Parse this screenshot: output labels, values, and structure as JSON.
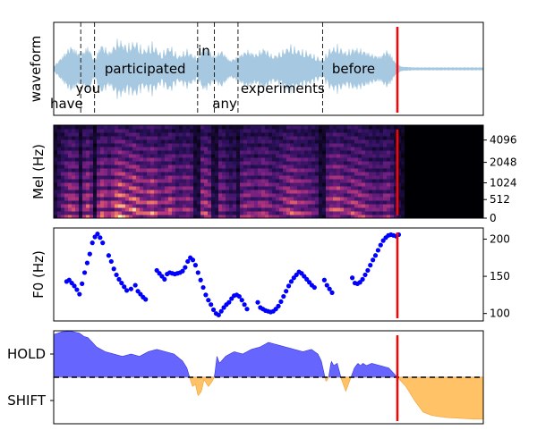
{
  "chart_data": [
    {
      "type": "area",
      "panel": "waveform",
      "ylabel": "waveform",
      "xlim": [
        0,
        100
      ],
      "ylim": [
        -1,
        1
      ],
      "color": "#a6c8e0",
      "cursor": {
        "x": 80.0,
        "color": "#ff0000"
      },
      "word_boundaries": [
        6.3,
        9.5,
        33.5,
        37.4,
        42.9,
        62.6
      ],
      "words": [
        {
          "text": "have",
          "x": 3.0,
          "y": -0.75
        },
        {
          "text": "you",
          "x": 8.0,
          "y": -0.42
        },
        {
          "text": "participated",
          "x": 21.3,
          "y": 0.0
        },
        {
          "text": "in",
          "x": 35.0,
          "y": 0.38
        },
        {
          "text": "any",
          "x": 39.8,
          "y": -0.75
        },
        {
          "text": "experiments",
          "x": 53.3,
          "y": -0.42
        },
        {
          "text": "before",
          "x": 69.8,
          "y": 0.0
        }
      ],
      "envelope": {
        "x": [
          0,
          2,
          4,
          6.3,
          8,
          9.5,
          11,
          13,
          15,
          17,
          19,
          21,
          23,
          25,
          27,
          29,
          31,
          33.5,
          35,
          37.4,
          39,
          41,
          42.9,
          45,
          47,
          49,
          51,
          53,
          55,
          57,
          59,
          61,
          62.6,
          64,
          66,
          68,
          70,
          72,
          74,
          76,
          77.5,
          78.5,
          79.5,
          81,
          84,
          90,
          95,
          100
        ],
        "amp": [
          0.05,
          0.3,
          0.55,
          0.35,
          0.55,
          0.2,
          0.6,
          0.4,
          0.7,
          0.55,
          0.65,
          0.45,
          0.6,
          0.35,
          0.55,
          0.3,
          0.45,
          0.25,
          0.55,
          0.3,
          0.45,
          0.2,
          0.3,
          0.45,
          0.35,
          0.5,
          0.3,
          0.4,
          0.55,
          0.45,
          0.4,
          0.3,
          0.2,
          0.45,
          0.55,
          0.4,
          0.5,
          0.45,
          0.35,
          0.3,
          0.45,
          0.35,
          0.15,
          0.05,
          0.03,
          0.03,
          0.03,
          0.03
        ]
      }
    },
    {
      "type": "heatmap",
      "panel": "mel",
      "ylabel": "Mel (Hz)",
      "xlim": [
        0,
        100
      ],
      "ylim": [
        0,
        8000
      ],
      "ytick_labels": [
        "0",
        "512",
        "1024",
        "2048",
        "4096"
      ],
      "colormap": "magma",
      "silence_after": 82.0,
      "cursor": {
        "x": 80.0,
        "color": "#ff0000"
      }
    },
    {
      "type": "scatter",
      "panel": "f0",
      "ylabel": "F0 (Hz)",
      "xlim": [
        0,
        100
      ],
      "ylim": [
        90,
        215
      ],
      "yticks": [
        100,
        150,
        200
      ],
      "color": "#0000ff",
      "cursor": {
        "x": 80.0,
        "color": "#ff0000"
      },
      "x": [
        3.0,
        3.6,
        4.2,
        4.8,
        5.4,
        6.0,
        6.6,
        7.2,
        7.8,
        8.4,
        9.0,
        9.6,
        10.2,
        10.8,
        11.4,
        12.8,
        13.4,
        14.0,
        14.6,
        15.2,
        15.8,
        16.4,
        17.0,
        18.0,
        19.0,
        19.6,
        20.2,
        20.8,
        21.4,
        24.0,
        24.6,
        25.2,
        25.8,
        26.4,
        27.0,
        27.6,
        28.2,
        28.8,
        29.4,
        30.0,
        30.6,
        31.2,
        31.8,
        32.4,
        33.0,
        33.6,
        34.2,
        34.8,
        35.4,
        36.0,
        36.6,
        37.2,
        37.8,
        38.4,
        39.0,
        39.6,
        40.2,
        40.8,
        41.4,
        42.0,
        42.6,
        43.2,
        43.8,
        44.4,
        45.0,
        47.5,
        48.1,
        48.7,
        49.3,
        49.9,
        50.5,
        51.1,
        51.7,
        52.3,
        52.9,
        53.5,
        54.1,
        54.7,
        55.3,
        55.9,
        56.5,
        57.1,
        57.7,
        58.3,
        58.9,
        59.5,
        60.1,
        60.7,
        63.0,
        63.6,
        64.2,
        64.8,
        69.5,
        70.1,
        70.7,
        71.3,
        71.9,
        72.5,
        73.1,
        73.7,
        74.3,
        74.9,
        75.5,
        76.1,
        76.7,
        77.3,
        77.9,
        78.5,
        79.1,
        79.7,
        80.3
      ],
      "y": [
        143,
        145,
        141,
        137,
        132,
        126,
        140,
        155,
        168,
        180,
        195,
        203,
        207,
        202,
        195,
        178,
        170,
        160,
        152,
        146,
        141,
        136,
        131,
        133,
        138,
        130,
        126,
        122,
        119,
        158,
        154,
        150,
        146,
        153,
        155,
        154,
        153,
        154,
        155,
        157,
        162,
        170,
        175,
        172,
        165,
        155,
        145,
        135,
        125,
        118,
        112,
        105,
        100,
        98,
        103,
        108,
        112,
        115,
        120,
        124,
        125,
        123,
        118,
        112,
        106,
        115,
        108,
        106,
        104,
        103,
        102,
        103,
        106,
        110,
        116,
        123,
        130,
        137,
        143,
        148,
        152,
        156,
        154,
        150,
        146,
        142,
        138,
        135,
        145,
        138,
        133,
        128,
        148,
        141,
        140,
        142,
        146,
        152,
        158,
        165,
        172,
        178,
        185,
        192,
        198,
        202,
        205,
        206,
        205,
        204,
        206
      ]
    },
    {
      "type": "area",
      "panel": "turn-taking",
      "ytick_labels": [
        "HOLD",
        "SHIFT"
      ],
      "xlim": [
        0,
        100
      ],
      "ylim": [
        -1,
        1
      ],
      "threshold": 0.0,
      "hold_color": "#6666ff",
      "shift_color": "#ffc266",
      "cursor": {
        "x": 80.0,
        "color": "#ff0000"
      },
      "x": [
        0,
        2,
        4,
        6,
        7,
        8,
        10,
        12,
        14,
        16,
        18,
        20,
        22,
        24,
        26,
        28,
        30,
        31,
        31.8,
        32.3,
        33,
        33.6,
        34.4,
        35,
        36,
        36.8,
        37.4,
        38,
        38.6,
        40,
        42,
        44,
        46,
        48,
        50,
        52,
        54,
        56,
        58,
        60,
        61.5,
        62.3,
        62.9,
        63.4,
        64,
        64.6,
        65.2,
        66,
        67,
        68,
        69,
        70,
        70.8,
        71.4,
        72,
        72.8,
        74,
        76,
        78,
        80,
        82,
        84,
        86,
        88,
        90,
        92,
        94,
        96,
        97.5,
        100
      ],
      "y": [
        0.92,
        0.98,
        0.99,
        0.95,
        0.88,
        0.85,
        0.65,
        0.55,
        0.5,
        0.45,
        0.5,
        0.45,
        0.55,
        0.6,
        0.55,
        0.5,
        0.35,
        0.2,
        -0.05,
        -0.2,
        -0.15,
        -0.4,
        -0.3,
        -0.05,
        -0.2,
        -0.1,
        0.0,
        0.45,
        0.3,
        0.45,
        0.55,
        0.5,
        0.6,
        0.65,
        0.75,
        0.7,
        0.65,
        0.6,
        0.55,
        0.6,
        0.5,
        0.35,
        0.1,
        -0.1,
        0.0,
        0.35,
        0.25,
        0.3,
        -0.05,
        -0.3,
        -0.05,
        0.2,
        0.3,
        0.25,
        0.3,
        0.25,
        0.3,
        0.25,
        0.2,
        0.0,
        -0.2,
        -0.5,
        -0.75,
        -0.82,
        -0.85,
        -0.87,
        -0.88,
        -0.89,
        -0.9,
        -0.9
      ]
    }
  ]
}
